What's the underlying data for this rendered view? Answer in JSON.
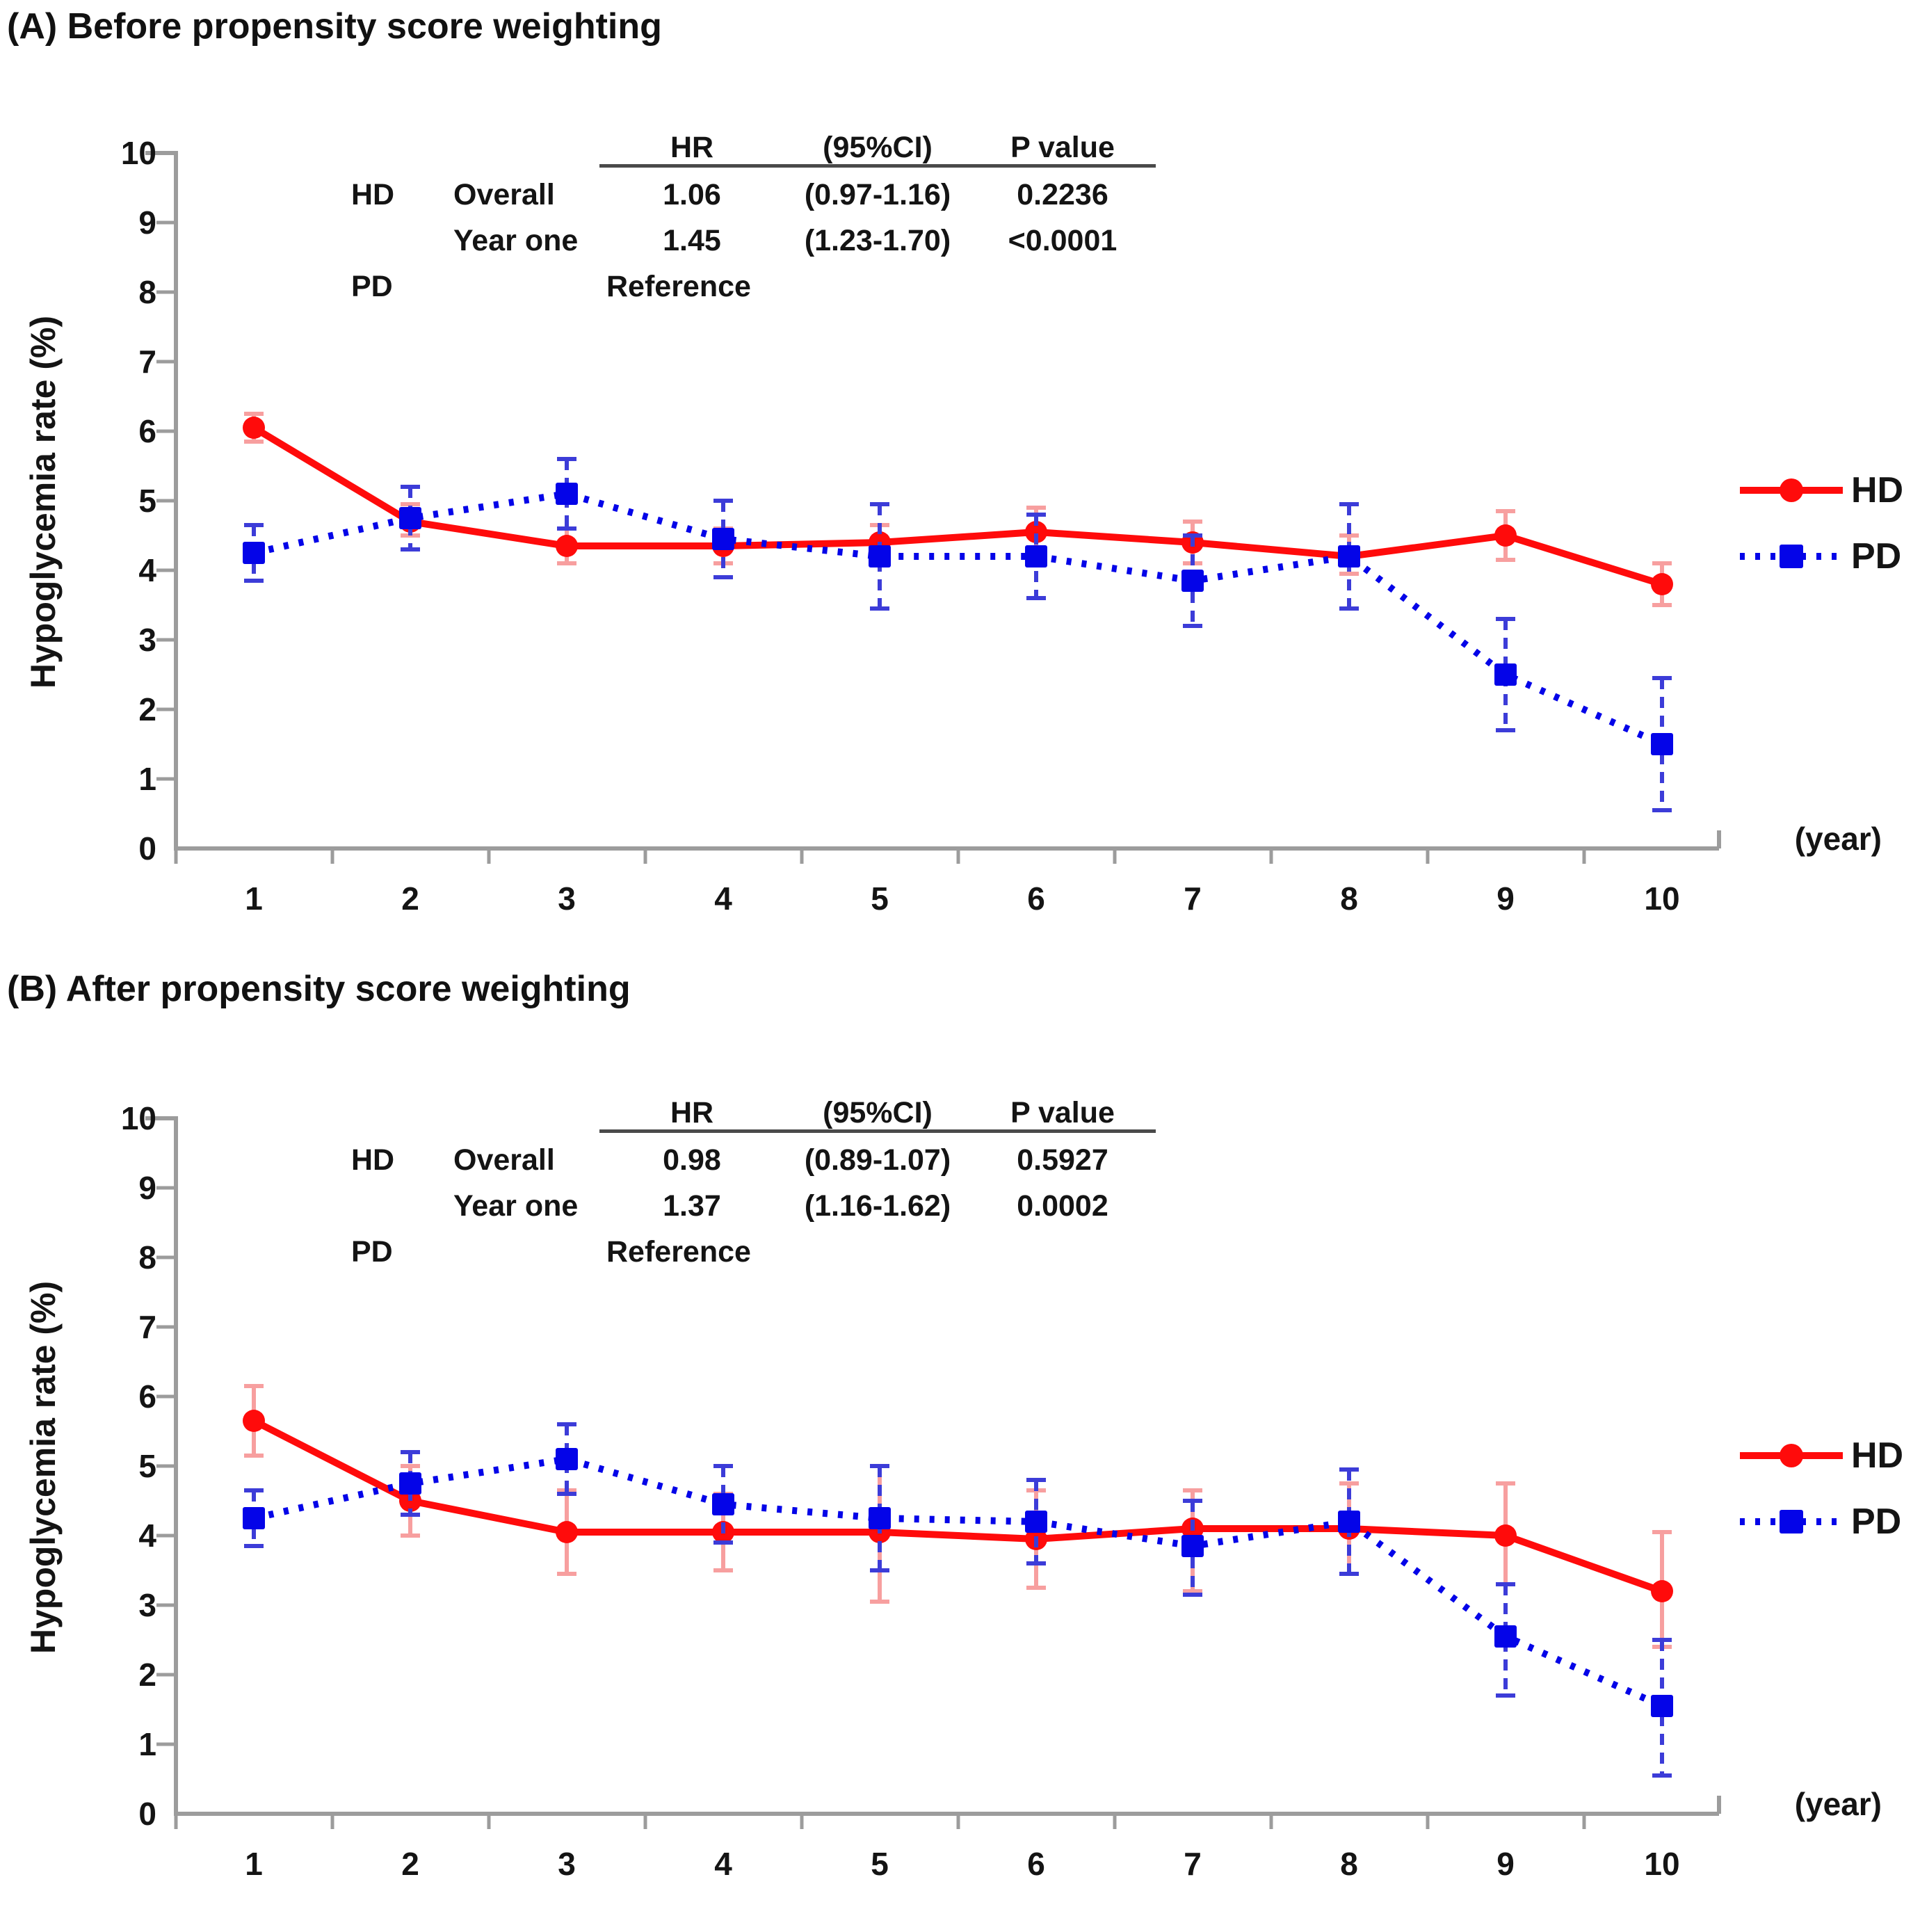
{
  "figure": {
    "panels": [
      {
        "id": "A",
        "title": "(A) Before propensity score weighting",
        "ylabel": "Hypoglycemia rate (%)",
        "xunit": "(year)",
        "legend": {
          "hd": "HD",
          "pd": "PD"
        },
        "table": {
          "headers": {
            "hr": "HR",
            "ci": "(95%CI)",
            "p": "P value"
          },
          "rows": [
            {
              "group": "HD",
              "period": "Overall",
              "hr": "1.06",
              "ci": "(0.97-1.16)",
              "p": "0.2236"
            },
            {
              "group": "",
              "period": "Year one",
              "hr": "1.45",
              "ci": "(1.23-1.70)",
              "p": "<0.0001"
            },
            {
              "group": "PD",
              "period": "",
              "hr": "Reference",
              "ci": "",
              "p": ""
            }
          ]
        }
      },
      {
        "id": "B",
        "title": "(B) After propensity score weighting",
        "ylabel": "Hypoglycemia rate (%)",
        "xunit": "(year)",
        "legend": {
          "hd": "HD",
          "pd": "PD"
        },
        "table": {
          "headers": {
            "hr": "HR",
            "ci": "(95%CI)",
            "p": "P value"
          },
          "rows": [
            {
              "group": "HD",
              "period": "Overall",
              "hr": "0.98",
              "ci": "(0.89-1.07)",
              "p": "0.5927"
            },
            {
              "group": "",
              "period": "Year one",
              "hr": "1.37",
              "ci": "(1.16-1.62)",
              "p": "0.0002"
            },
            {
              "group": "PD",
              "period": "",
              "hr": "Reference",
              "ci": "",
              "p": ""
            }
          ]
        }
      }
    ]
  },
  "chart_data": [
    {
      "type": "line",
      "title": "(A) Before propensity score weighting",
      "xlabel": "(year)",
      "ylabel": "Hypoglycemia rate (%)",
      "categories": [
        1,
        2,
        3,
        4,
        5,
        6,
        7,
        8,
        9,
        10
      ],
      "ylim": [
        0,
        10
      ],
      "ytick_step": 1,
      "grid": false,
      "legend_position": "right-middle",
      "series": [
        {
          "name": "HD",
          "color": "#ff0b0b",
          "err_color": "#f79f9f",
          "line_style": "solid",
          "marker": "circle",
          "values": [
            6.05,
            4.7,
            4.35,
            4.35,
            4.4,
            4.55,
            4.4,
            4.2,
            4.5,
            3.8
          ],
          "err_low": [
            5.85,
            4.5,
            4.1,
            4.1,
            4.15,
            4.2,
            4.1,
            3.95,
            4.15,
            3.5
          ],
          "err_high": [
            6.25,
            4.95,
            4.6,
            4.6,
            4.65,
            4.9,
            4.7,
            4.5,
            4.85,
            4.1
          ]
        },
        {
          "name": "PD",
          "color": "#0404e8",
          "err_color": "#3c3cd8",
          "line_style": "dotted",
          "marker": "square",
          "values": [
            4.25,
            4.75,
            5.1,
            4.45,
            4.2,
            4.2,
            3.85,
            4.2,
            2.5,
            1.5
          ],
          "err_low": [
            3.85,
            4.3,
            4.6,
            3.9,
            3.45,
            3.6,
            3.2,
            3.45,
            1.7,
            0.55
          ],
          "err_high": [
            4.65,
            5.2,
            5.6,
            5.0,
            4.95,
            4.8,
            4.5,
            4.95,
            3.3,
            2.45
          ]
        }
      ]
    },
    {
      "type": "line",
      "title": "(B) After propensity score weighting",
      "xlabel": "(year)",
      "ylabel": "Hypoglycemia rate (%)",
      "categories": [
        1,
        2,
        3,
        4,
        5,
        6,
        7,
        8,
        9,
        10
      ],
      "ylim": [
        0,
        10
      ],
      "ytick_step": 1,
      "grid": false,
      "legend_position": "right-middle",
      "series": [
        {
          "name": "HD",
          "color": "#ff0b0b",
          "err_color": "#f79f9f",
          "line_style": "solid",
          "marker": "circle",
          "values": [
            5.65,
            4.5,
            4.05,
            4.05,
            4.05,
            3.95,
            4.1,
            4.1,
            4.0,
            3.2
          ],
          "err_low": [
            5.15,
            4.0,
            3.45,
            3.5,
            3.05,
            3.25,
            3.2,
            3.45,
            3.3,
            2.4
          ],
          "err_high": [
            6.15,
            5.0,
            4.65,
            4.6,
            5.0,
            4.65,
            4.65,
            4.75,
            4.75,
            4.05
          ]
        },
        {
          "name": "PD",
          "color": "#0404e8",
          "err_color": "#3c3cd8",
          "line_style": "dotted",
          "marker": "square",
          "values": [
            4.25,
            4.75,
            5.1,
            4.45,
            4.25,
            4.2,
            3.85,
            4.2,
            2.55,
            1.55
          ],
          "err_low": [
            3.85,
            4.3,
            4.6,
            3.9,
            3.5,
            3.6,
            3.15,
            3.45,
            1.7,
            0.55
          ],
          "err_high": [
            4.65,
            5.2,
            5.6,
            5.0,
            5.0,
            4.8,
            4.5,
            4.95,
            3.3,
            2.5
          ]
        }
      ]
    }
  ],
  "colors": {
    "axis": "#9c9c9c",
    "text": "#141414",
    "hd": "#ff0b0b",
    "pd": "#0404e8"
  }
}
